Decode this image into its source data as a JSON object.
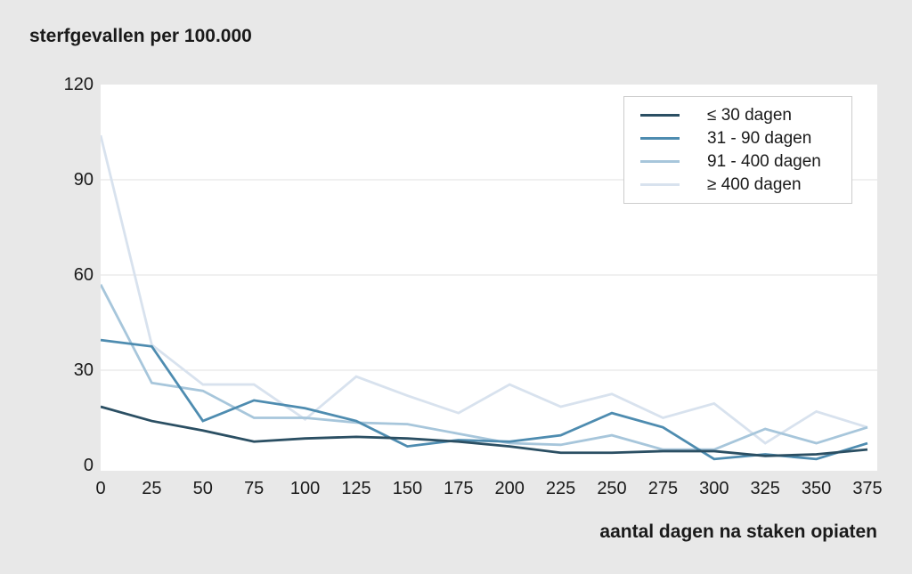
{
  "title": "sterfgevallen per 100.000",
  "colors": {
    "background": "#e8e8e8",
    "plot_background": "#ffffff",
    "gridline": "#e0e0e0",
    "text": "#1a1a1a",
    "legend_border": "#cccccc",
    "series_dark": "#2b4f63",
    "series_medium": "#4e8cb0",
    "series_light": "#a7c6db",
    "series_pale": "#d8e2ee"
  },
  "chart_data": {
    "type": "line",
    "title": "sterfgevallen per 100.000",
    "xlabel": "aantal dagen na staken opiaten",
    "ylabel": "sterfgevallen per 100.000",
    "x": [
      0,
      25,
      50,
      75,
      100,
      125,
      150,
      175,
      200,
      225,
      250,
      275,
      300,
      325,
      350,
      375
    ],
    "xlim": [
      0,
      380
    ],
    "ylim": [
      0,
      120
    ],
    "yticks": [
      0,
      30,
      60,
      90,
      120
    ],
    "grid": "horizontal",
    "legend_position": "top-right",
    "series": [
      {
        "name": "≤ 30 dagen",
        "color": "#2b4f63",
        "values": [
          18.5,
          14,
          11,
          7.5,
          8.5,
          9,
          8.5,
          7.5,
          6,
          4,
          4,
          4.5,
          4.5,
          3,
          3.5,
          5
        ]
      },
      {
        "name": "31 - 90 dagen",
        "color": "#4e8cb0",
        "values": [
          39.5,
          37.5,
          14,
          20.5,
          18,
          14,
          6,
          8,
          7.5,
          9.5,
          16.5,
          12,
          2,
          3.5,
          2,
          7
        ]
      },
      {
        "name": "91 - 400 dagen",
        "color": "#a7c6db",
        "values": [
          57,
          26,
          23.5,
          15,
          15,
          13.5,
          13,
          10,
          7,
          6.5,
          9.5,
          5,
          5,
          11.5,
          7,
          12
        ]
      },
      {
        "name": "≥ 400 dagen",
        "color": "#d8e2ee",
        "values": [
          104,
          38,
          25.5,
          25.5,
          14.5,
          28,
          22,
          16.5,
          25.5,
          18.5,
          22.5,
          15,
          19.5,
          7,
          17,
          12
        ]
      }
    ]
  }
}
